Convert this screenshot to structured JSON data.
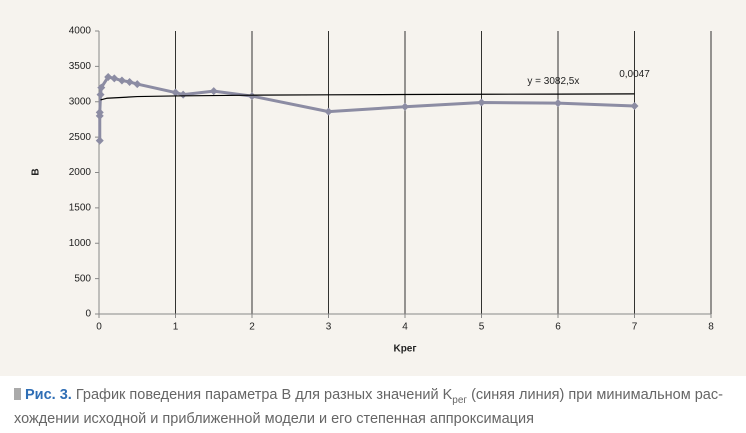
{
  "chart_data": {
    "type": "line",
    "xlabel": "Kрег",
    "ylabel": "B",
    "xlim": [
      0,
      8
    ],
    "xticks": [
      0,
      1,
      2,
      3,
      4,
      5,
      6,
      7,
      8
    ],
    "ylim": [
      0,
      4000
    ],
    "yticks": [
      0,
      500,
      1000,
      1500,
      2000,
      2500,
      3000,
      3500,
      4000
    ],
    "grid": true,
    "series": [
      {
        "color": "#8c8ca3",
        "markers": true,
        "x": [
          0.01,
          0.01,
          0.01,
          0.02,
          0.03,
          0.12,
          0.2,
          0.3,
          0.4,
          0.5,
          1.0,
          1.1,
          1.5,
          2,
          3,
          4,
          5,
          6,
          7
        ],
        "values": [
          2450,
          2800,
          2850,
          3100,
          3200,
          3350,
          3330,
          3300,
          3280,
          3250,
          3130,
          3100,
          3150,
          3080,
          2860,
          2930,
          2990,
          2980,
          2940
        ]
      },
      {
        "color": "#000000",
        "markers": false,
        "x": [
          0.02,
          0.1,
          0.5,
          1,
          2,
          3,
          4,
          5,
          6,
          7
        ],
        "values": [
          3026,
          3049,
          3073,
          3082,
          3093,
          3098,
          3102,
          3106,
          3108,
          3111
        ]
      }
    ],
    "annotations": [
      {
        "text": "y = 3082,5x",
        "x": 5.6,
        "y": 3290
      },
      {
        "text": "0,0047",
        "x": 6.8,
        "y": 3390
      }
    ]
  },
  "caption": {
    "label": "Рис. 3.",
    "text_1": "График поведения параметра B для разных значений K",
    "subscript": "рег",
    "text_2": "(синяя линия) при минимальном рас-",
    "line_2": "хождении исходной и приближенной модели и его степенная аппроксимация"
  }
}
